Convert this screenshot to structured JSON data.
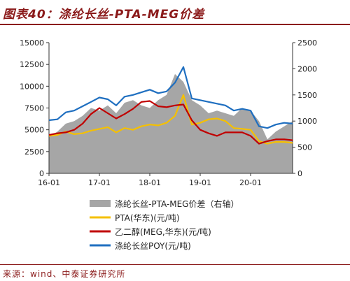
{
  "header": {
    "title": "图表40：涤纶长丝-PTA-MEG价差"
  },
  "footer": {
    "source": "来源：wind、中泰证券研究所"
  },
  "chart_data": {
    "type": "area+line",
    "x_ticks": [
      "16-01",
      "17-01",
      "18-01",
      "19-01",
      "20-01"
    ],
    "x_range": [
      "2016-01",
      "2020-11"
    ],
    "y_left": {
      "min": 0,
      "max": 15000,
      "ticks": [
        0,
        2500,
        5000,
        7500,
        10000,
        12500,
        15000
      ]
    },
    "y_right": {
      "min": 0,
      "max": 2500,
      "ticks": [
        0,
        500,
        1000,
        1500,
        2000,
        2500
      ]
    },
    "x": [
      "2016-01",
      "2016-03",
      "2016-05",
      "2016-07",
      "2016-09",
      "2016-11",
      "2017-01",
      "2017-03",
      "2017-05",
      "2017-07",
      "2017-09",
      "2017-11",
      "2018-01",
      "2018-03",
      "2018-05",
      "2018-07",
      "2018-09",
      "2018-11",
      "2019-01",
      "2019-03",
      "2019-05",
      "2019-07",
      "2019-09",
      "2019-11",
      "2020-01",
      "2020-03",
      "2020-05",
      "2020-07",
      "2020-09",
      "2020-11"
    ],
    "series": [
      {
        "name": "涤纶长丝-PTA-MEG价差（右轴）",
        "axis": "right",
        "style": "area",
        "color": "#a6a6a6",
        "values": [
          700,
          800,
          950,
          1000,
          1100,
          1250,
          1200,
          1300,
          1150,
          1350,
          1400,
          1300,
          1250,
          1400,
          1500,
          1900,
          1750,
          1400,
          1300,
          1150,
          1200,
          1150,
          1100,
          1250,
          1200,
          1000,
          650,
          800,
          900,
          1000
        ]
      },
      {
        "name": "PTA(华东)(元/吨)",
        "axis": "left",
        "style": "line",
        "color": "#f5c000",
        "values": [
          4300,
          4400,
          4800,
          4500,
          4600,
          4900,
          5100,
          5300,
          4700,
          5200,
          5000,
          5400,
          5600,
          5500,
          5800,
          6600,
          9000,
          5600,
          5800,
          6200,
          6300,
          6000,
          5200,
          5100,
          5000,
          3700,
          3400,
          3600,
          3600,
          3500
        ]
      },
      {
        "name": "乙二醇(MEG,华东)(元/吨)",
        "axis": "left",
        "style": "line",
        "color": "#c00000",
        "values": [
          4400,
          4600,
          4700,
          5000,
          5700,
          6800,
          7500,
          6900,
          6300,
          6800,
          7400,
          8200,
          8300,
          7700,
          7600,
          7800,
          7900,
          6100,
          5000,
          4600,
          4300,
          4700,
          4700,
          4700,
          4300,
          3400,
          3700,
          3900,
          3900,
          3800
        ]
      },
      {
        "name": "涤纶长丝POY(元/吨)",
        "axis": "left",
        "style": "line",
        "color": "#1f6fc0",
        "values": [
          6100,
          6200,
          7000,
          7200,
          7700,
          8200,
          8700,
          8500,
          7800,
          8800,
          9000,
          9300,
          9600,
          9200,
          9400,
          10400,
          12200,
          8600,
          8400,
          8200,
          8000,
          7800,
          7200,
          7400,
          7200,
          5400,
          5200,
          5600,
          5800,
          5700
        ]
      }
    ]
  }
}
